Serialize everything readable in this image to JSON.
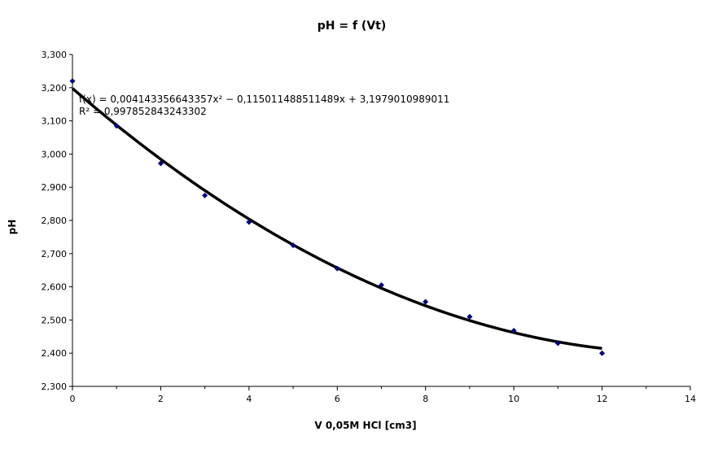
{
  "chart_data": {
    "type": "scatter",
    "title": "pH = f (Vt)",
    "xlabel": "V 0,05M HCl [cm3]",
    "ylabel": "pH",
    "xlim": [
      0,
      14
    ],
    "ylim": [
      2.3,
      3.3
    ],
    "x_ticks": [
      "0",
      "2",
      "4",
      "6",
      "8",
      "10",
      "12",
      "14"
    ],
    "y_ticks": [
      "2,300",
      "2,400",
      "2,500",
      "2,600",
      "2,700",
      "2,800",
      "2,900",
      "3,000",
      "3,100",
      "3,200",
      "3,300"
    ],
    "grid": false,
    "legend": "none",
    "series": [
      {
        "x": [
          0,
          1,
          2,
          3,
          4,
          5,
          6,
          7,
          8,
          9,
          10,
          11,
          12
        ],
        "y": [
          3.22,
          3.085,
          2.972,
          2.875,
          2.795,
          2.725,
          2.655,
          2.605,
          2.555,
          2.51,
          2.468,
          2.43,
          2.4
        ],
        "color": "#000080",
        "marker": "diamond"
      }
    ],
    "trendline": {
      "type": "polynomial",
      "coefficients": {
        "a": 0.004143356643357,
        "b": -0.115011488511489,
        "c": 3.1979010989011
      },
      "x_range": [
        0,
        12
      ],
      "color": "#000000",
      "equation_label": "f(x) = 0,004143356643357x² − 0,115011488511489x + 3,1979010989011",
      "r2_label": "R² = 0,997852843243302"
    }
  }
}
